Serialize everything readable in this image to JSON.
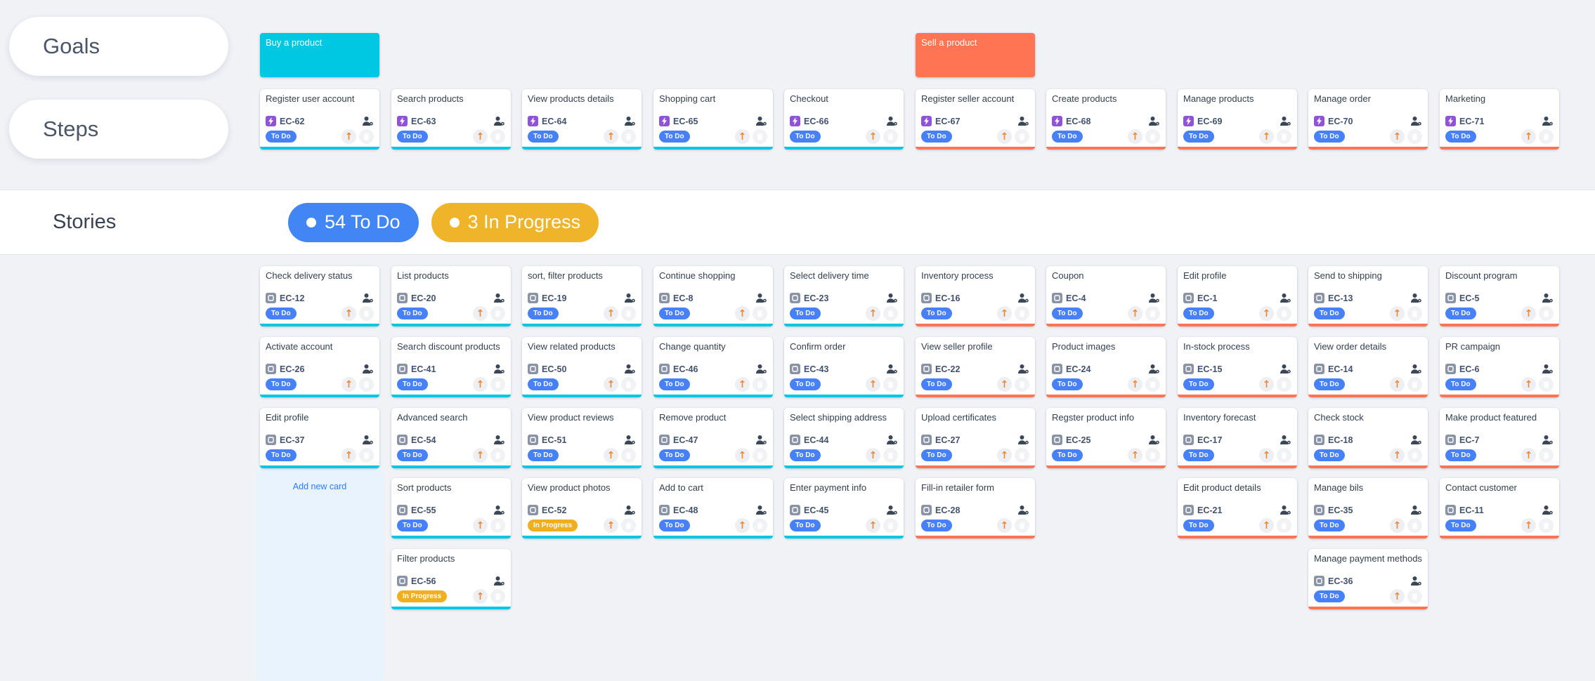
{
  "colors": {
    "background": "#f0f2f6",
    "cyan_accent": "#00c7e2",
    "orange_accent": "#ff7452",
    "purple_type_icon": "#9053d6",
    "gray_type_icon": "#8993a4",
    "status": {
      "To Do": "#4781f9",
      "In Progress": "#efaf1f"
    },
    "link_blue": "#2e7cf6"
  },
  "rails": {
    "goals": "Goals",
    "steps": "Steps",
    "stories": "Stories"
  },
  "badges": [
    {
      "label": "54 To Do",
      "color": "#4285f4"
    },
    {
      "label": "3 In Progress",
      "color": "#efb42a"
    }
  ],
  "goals": [
    {
      "title": "Buy a product",
      "color": "#00c7e2",
      "col": 1
    },
    {
      "title": "Sell a product",
      "color": "#ff7452",
      "col": 6
    }
  ],
  "steps": [
    {
      "title": "Register user account",
      "id": "EC-62",
      "status": "To Do",
      "col": 1,
      "accent": "cyan"
    },
    {
      "title": "Search products",
      "id": "EC-63",
      "status": "To Do",
      "col": 2,
      "accent": "cyan"
    },
    {
      "title": "View products details",
      "id": "EC-64",
      "status": "To Do",
      "col": 3,
      "accent": "cyan"
    },
    {
      "title": "Shopping cart",
      "id": "EC-65",
      "status": "To Do",
      "col": 4,
      "accent": "cyan"
    },
    {
      "title": "Checkout",
      "id": "EC-66",
      "status": "To Do",
      "col": 5,
      "accent": "cyan"
    },
    {
      "title": "Register seller account",
      "id": "EC-67",
      "status": "To Do",
      "col": 6,
      "accent": "orange"
    },
    {
      "title": "Create products",
      "id": "EC-68",
      "status": "To Do",
      "col": 7,
      "accent": "orange"
    },
    {
      "title": "Manage products",
      "id": "EC-69",
      "status": "To Do",
      "col": 8,
      "accent": "orange"
    },
    {
      "title": "Manage order",
      "id": "EC-70",
      "status": "To Do",
      "col": 9,
      "accent": "orange"
    },
    {
      "title": "Marketing",
      "id": "EC-71",
      "status": "To Do",
      "col": 10,
      "accent": "orange"
    }
  ],
  "stories": [
    {
      "title": "Check delivery status",
      "id": "EC-12",
      "status": "To Do",
      "col": 1,
      "row": 1,
      "accent": "cyan"
    },
    {
      "title": "List products",
      "id": "EC-20",
      "status": "To Do",
      "col": 2,
      "row": 1,
      "accent": "cyan"
    },
    {
      "title": "sort, filter products",
      "id": "EC-19",
      "status": "To Do",
      "col": 3,
      "row": 1,
      "accent": "cyan"
    },
    {
      "title": "Continue shopping",
      "id": "EC-8",
      "status": "To Do",
      "col": 4,
      "row": 1,
      "accent": "cyan"
    },
    {
      "title": "Select delivery time",
      "id": "EC-23",
      "status": "To Do",
      "col": 5,
      "row": 1,
      "accent": "cyan"
    },
    {
      "title": "Inventory process",
      "id": "EC-16",
      "status": "To Do",
      "col": 6,
      "row": 1,
      "accent": "orange"
    },
    {
      "title": "Coupon",
      "id": "EC-4",
      "status": "To Do",
      "col": 7,
      "row": 1,
      "accent": "orange"
    },
    {
      "title": "Edit profile",
      "id": "EC-1",
      "status": "To Do",
      "col": 8,
      "row": 1,
      "accent": "orange"
    },
    {
      "title": "Send to shipping",
      "id": "EC-13",
      "status": "To Do",
      "col": 9,
      "row": 1,
      "accent": "orange"
    },
    {
      "title": "Discount program",
      "id": "EC-5",
      "status": "To Do",
      "col": 10,
      "row": 1,
      "accent": "orange"
    },
    {
      "title": "Activate account",
      "id": "EC-26",
      "status": "To Do",
      "col": 1,
      "row": 2,
      "accent": "cyan"
    },
    {
      "title": "Search discount products",
      "id": "EC-41",
      "status": "To Do",
      "col": 2,
      "row": 2,
      "accent": "cyan"
    },
    {
      "title": "View related products",
      "id": "EC-50",
      "status": "To Do",
      "col": 3,
      "row": 2,
      "accent": "cyan"
    },
    {
      "title": "Change quantity",
      "id": "EC-46",
      "status": "To Do",
      "col": 4,
      "row": 2,
      "accent": "cyan"
    },
    {
      "title": "Confirm order",
      "id": "EC-43",
      "status": "To Do",
      "col": 5,
      "row": 2,
      "accent": "cyan"
    },
    {
      "title": "View seller profile",
      "id": "EC-22",
      "status": "To Do",
      "col": 6,
      "row": 2,
      "accent": "orange"
    },
    {
      "title": "Product images",
      "id": "EC-24",
      "status": "To Do",
      "col": 7,
      "row": 2,
      "accent": "orange"
    },
    {
      "title": "In-stock process",
      "id": "EC-15",
      "status": "To Do",
      "col": 8,
      "row": 2,
      "accent": "orange"
    },
    {
      "title": "View order details",
      "id": "EC-14",
      "status": "To Do",
      "col": 9,
      "row": 2,
      "accent": "orange"
    },
    {
      "title": "PR campaign",
      "id": "EC-6",
      "status": "To Do",
      "col": 10,
      "row": 2,
      "accent": "orange"
    },
    {
      "title": "Edit profile",
      "id": "EC-37",
      "status": "To Do",
      "col": 1,
      "row": 3,
      "accent": "cyan"
    },
    {
      "title": "Advanced search",
      "id": "EC-54",
      "status": "To Do",
      "col": 2,
      "row": 3,
      "accent": "cyan"
    },
    {
      "title": "View product reviews",
      "id": "EC-51",
      "status": "To Do",
      "col": 3,
      "row": 3,
      "accent": "cyan"
    },
    {
      "title": "Remove product",
      "id": "EC-47",
      "status": "To Do",
      "col": 4,
      "row": 3,
      "accent": "cyan"
    },
    {
      "title": "Select shipping address",
      "id": "EC-44",
      "status": "To Do",
      "col": 5,
      "row": 3,
      "accent": "cyan"
    },
    {
      "title": "Upload certificates",
      "id": "EC-27",
      "status": "To Do",
      "col": 6,
      "row": 3,
      "accent": "orange"
    },
    {
      "title": "Regster product info",
      "id": "EC-25",
      "status": "To Do",
      "col": 7,
      "row": 3,
      "accent": "orange"
    },
    {
      "title": "Inventory forecast",
      "id": "EC-17",
      "status": "To Do",
      "col": 8,
      "row": 3,
      "accent": "orange"
    },
    {
      "title": "Check stock",
      "id": "EC-18",
      "status": "To Do",
      "col": 9,
      "row": 3,
      "accent": "orange"
    },
    {
      "title": "Make product featured",
      "id": "EC-7",
      "status": "To Do",
      "col": 10,
      "row": 3,
      "accent": "orange"
    },
    {
      "title": "Sort products",
      "id": "EC-55",
      "status": "To Do",
      "col": 2,
      "row": 4,
      "accent": "cyan"
    },
    {
      "title": "View product photos",
      "id": "EC-52",
      "status": "In Progress",
      "col": 3,
      "row": 4,
      "accent": "cyan"
    },
    {
      "title": "Add to cart",
      "id": "EC-48",
      "status": "To Do",
      "col": 4,
      "row": 4,
      "accent": "cyan"
    },
    {
      "title": "Enter payment info",
      "id": "EC-45",
      "status": "To Do",
      "col": 5,
      "row": 4,
      "accent": "cyan"
    },
    {
      "title": "Fill-in retailer form",
      "id": "EC-28",
      "status": "To Do",
      "col": 6,
      "row": 4,
      "accent": "orange"
    },
    {
      "title": "Edit product details",
      "id": "EC-21",
      "status": "To Do",
      "col": 8,
      "row": 4,
      "accent": "orange"
    },
    {
      "title": "Manage bils",
      "id": "EC-35",
      "status": "To Do",
      "col": 9,
      "row": 4,
      "accent": "orange"
    },
    {
      "title": "Contact customer",
      "id": "EC-11",
      "status": "To Do",
      "col": 10,
      "row": 4,
      "accent": "orange"
    },
    {
      "title": "Filter products",
      "id": "EC-56",
      "status": "In Progress",
      "col": 2,
      "row": 5,
      "accent": "cyan"
    },
    {
      "title": "Manage payment methods",
      "id": "EC-36",
      "status": "To Do",
      "col": 9,
      "row": 5,
      "accent": "orange"
    }
  ],
  "add_card": {
    "label": "Add new card"
  }
}
